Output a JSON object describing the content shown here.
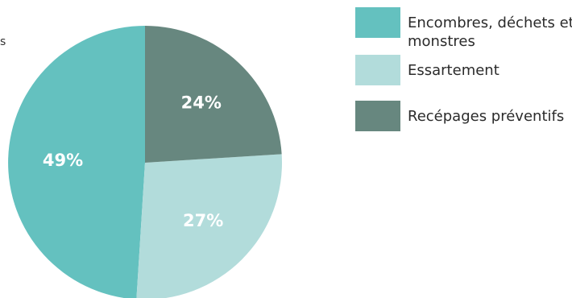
{
  "chart_data": {
    "type": "pie",
    "title": "",
    "legend_position": "right",
    "slices": [
      {
        "label": "Encombres, déchets et monstres",
        "value": 49,
        "display": "49%",
        "color": "#64c1bf"
      },
      {
        "label": "Essartement",
        "value": 27,
        "display": "27%",
        "color": "#b2dcdb"
      },
      {
        "label": "Recépages préventifs",
        "value": 24,
        "display": "24%",
        "color": "#67877f"
      }
    ]
  },
  "fragment_text": "s"
}
